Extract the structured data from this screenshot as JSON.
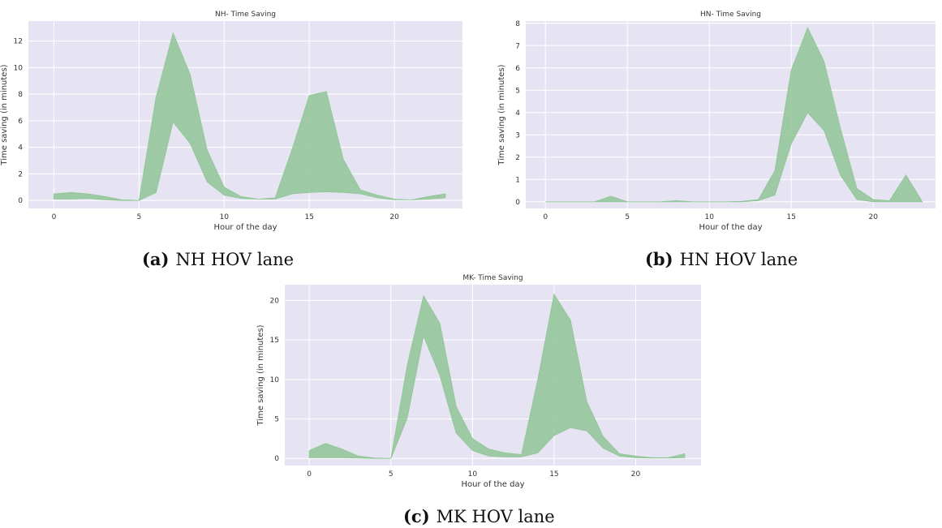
{
  "charts": [
    {
      "caption_label": "(a)",
      "caption_text": "NH HOV lane"
    },
    {
      "caption_label": "(b)",
      "caption_text": "HN HOV lane"
    },
    {
      "caption_label": "(c)",
      "caption_text": "MK HOV lane"
    }
  ],
  "colors": {
    "plot_background": "#e6e4f2",
    "fill": "#8fc596",
    "grid": "#ffffff"
  },
  "chart_data": [
    {
      "type": "area",
      "title": "NH- Time Saving",
      "xlabel": "Hour of the day",
      "ylabel": "Time saving (in minutes)",
      "xlim": [
        -1.5,
        24
      ],
      "ylim": [
        -0.6,
        13.5
      ],
      "xticks": [
        0,
        5,
        10,
        15,
        20
      ],
      "yticks": [
        0,
        2,
        4,
        6,
        8,
        10,
        12
      ],
      "grid": true,
      "x": [
        0,
        1,
        2,
        3,
        4,
        5,
        6,
        7,
        8,
        9,
        10,
        11,
        12,
        13,
        14,
        15,
        16,
        17,
        18,
        19,
        20,
        21,
        22,
        23
      ],
      "series": [
        {
          "values": [
            0.1,
            0.1,
            0.15,
            0.05,
            0.0,
            0.0,
            0.6,
            5.9,
            4.3,
            1.4,
            0.4,
            0.15,
            0.1,
            0.1,
            0.5,
            0.6,
            0.65,
            0.6,
            0.5,
            0.2,
            0.05,
            0.05,
            0.1,
            0.2
          ]
        },
        {
          "values": [
            0.5,
            0.6,
            0.5,
            0.3,
            0.05,
            0.0,
            7.8,
            12.6,
            9.5,
            3.8,
            1.0,
            0.3,
            0.1,
            0.2,
            3.9,
            7.9,
            8.2,
            3.1,
            0.8,
            0.4,
            0.1,
            0.05,
            0.3,
            0.5
          ]
        }
      ]
    },
    {
      "type": "area",
      "title": "HN- Time Saving",
      "xlabel": "Hour of the day",
      "ylabel": "Time saving (in minutes)",
      "xlim": [
        -1.2,
        23.8
      ],
      "ylim": [
        -0.3,
        8.1
      ],
      "xticks": [
        0,
        5,
        10,
        15,
        20
      ],
      "yticks": [
        0,
        1,
        2,
        3,
        4,
        5,
        6,
        7,
        8
      ],
      "grid": true,
      "x": [
        0,
        1,
        2,
        3,
        4,
        5,
        6,
        7,
        8,
        9,
        10,
        11,
        12,
        13,
        14,
        15,
        16,
        17,
        18,
        19,
        20,
        21,
        22,
        23
      ],
      "series": [
        {
          "values": [
            0,
            0,
            0,
            0,
            0,
            0,
            0,
            0,
            0,
            0,
            0,
            0,
            0,
            0.05,
            0.3,
            2.6,
            4.0,
            3.2,
            1.2,
            0.1,
            0.0,
            0.0,
            0.0,
            0.0
          ]
        },
        {
          "values": [
            0,
            0,
            0,
            0,
            0.25,
            0,
            0,
            0,
            0.05,
            0,
            0,
            0,
            0.02,
            0.1,
            1.4,
            5.9,
            7.8,
            6.3,
            3.3,
            0.6,
            0.1,
            0.05,
            1.2,
            0.0
          ]
        }
      ]
    },
    {
      "type": "area",
      "title": "MK- Time Saving",
      "xlabel": "Hour of the day",
      "ylabel": "Time saving (in minutes)",
      "xlim": [
        -1.5,
        24
      ],
      "ylim": [
        -0.9,
        22
      ],
      "xticks": [
        0,
        5,
        10,
        15,
        20
      ],
      "yticks": [
        0,
        5,
        10,
        15,
        20
      ],
      "grid": true,
      "x": [
        0,
        1,
        2,
        3,
        4,
        5,
        6,
        7,
        8,
        9,
        10,
        11,
        12,
        13,
        14,
        15,
        16,
        17,
        18,
        19,
        20,
        21,
        22,
        23
      ],
      "series": [
        {
          "values": [
            0.1,
            0.1,
            0.1,
            0.05,
            0.0,
            0.0,
            5.1,
            15.5,
            10.5,
            3.2,
            1.0,
            0.3,
            0.2,
            0.2,
            0.7,
            2.9,
            3.9,
            3.5,
            1.3,
            0.3,
            0.1,
            0.05,
            0.05,
            0.1
          ]
        },
        {
          "values": [
            1.0,
            1.9,
            1.2,
            0.3,
            0.05,
            0.0,
            11.8,
            20.6,
            17.1,
            6.6,
            2.5,
            1.2,
            0.7,
            0.5,
            10.0,
            20.8,
            17.5,
            7.2,
            2.8,
            0.6,
            0.3,
            0.1,
            0.1,
            0.6
          ]
        }
      ]
    }
  ]
}
